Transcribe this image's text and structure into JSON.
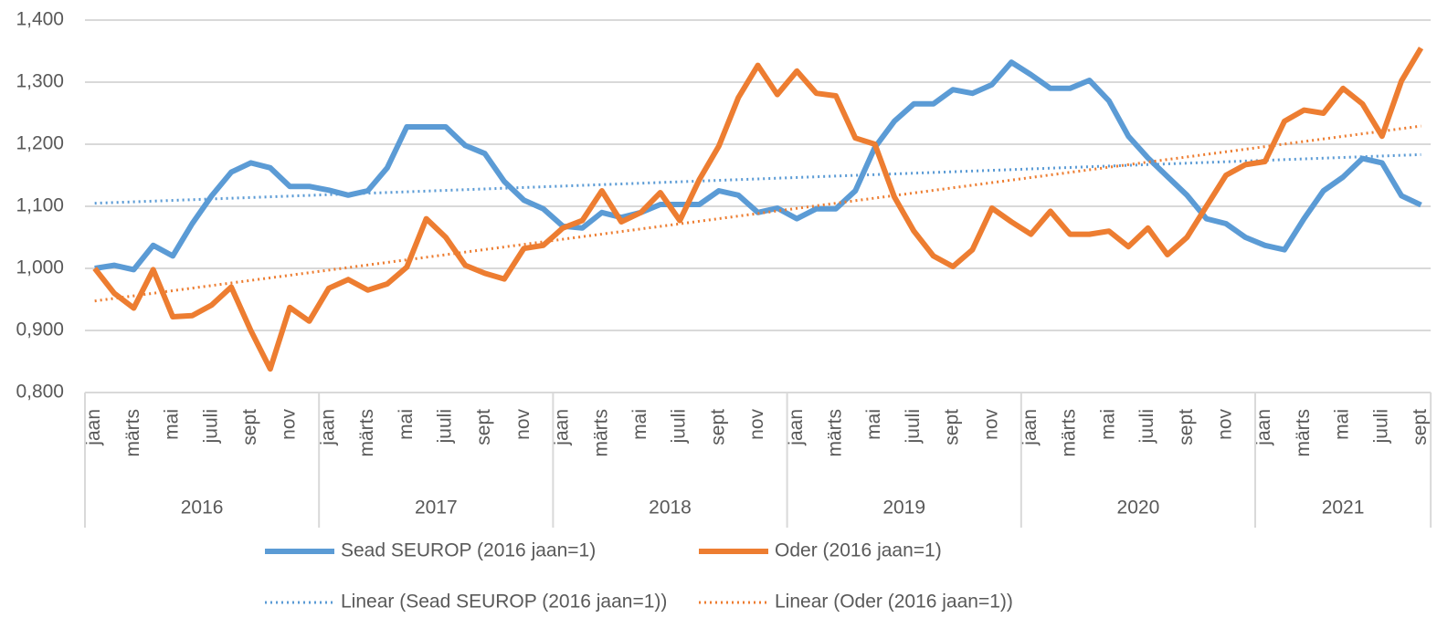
{
  "chart_data": {
    "type": "line",
    "categories": [
      "jaan",
      null,
      "märts",
      null,
      "mai",
      null,
      "juuli",
      null,
      "sept",
      null,
      "nov",
      null,
      "jaan",
      null,
      "märts",
      null,
      "mai",
      null,
      "juuli",
      null,
      "sept",
      null,
      "nov",
      null,
      "jaan",
      null,
      "märts",
      null,
      "mai",
      null,
      "juuli",
      null,
      "sept",
      null,
      "nov",
      null,
      "jaan",
      null,
      "märts",
      null,
      "mai",
      null,
      "juuli",
      null,
      "sept",
      null,
      "nov",
      null,
      "jaan",
      null,
      "märts",
      null,
      "mai",
      null,
      "juuli",
      null,
      "sept",
      null,
      "nov",
      null,
      "jaan",
      null,
      "märts",
      null,
      "mai",
      null,
      "juuli",
      null,
      "sept"
    ],
    "years": [
      "2016",
      "2017",
      "2018",
      "2019",
      "2020",
      "2021"
    ],
    "series": [
      {
        "name": "Sead SEUROP (2016 jaan=1)",
        "color": "#5b9bd5",
        "trendline": {
          "name": "Linear (Sead SEUROP (2016 jaan=1))"
        },
        "values": [
          1.0,
          1.005,
          0.998,
          1.037,
          1.02,
          1.072,
          1.117,
          1.155,
          1.17,
          1.162,
          1.132,
          1.132,
          1.126,
          1.118,
          1.125,
          1.162,
          1.228,
          1.228,
          1.228,
          1.198,
          1.185,
          1.14,
          1.11,
          1.096,
          1.068,
          1.065,
          1.09,
          1.082,
          1.09,
          1.103,
          1.103,
          1.103,
          1.125,
          1.118,
          1.09,
          1.097,
          1.08,
          1.096,
          1.096,
          1.125,
          1.195,
          1.237,
          1.265,
          1.265,
          1.288,
          1.282,
          1.296,
          1.332,
          1.312,
          1.29,
          1.29,
          1.303,
          1.27,
          1.213,
          1.178,
          1.148,
          1.118,
          1.08,
          1.072,
          1.05,
          1.037,
          1.03,
          1.08,
          1.125,
          1.147,
          1.177,
          1.17,
          1.117,
          1.102
        ]
      },
      {
        "name": "Oder (2016 jaan=1)",
        "color": "#ed7d31",
        "trendline": {
          "name": "Linear (Oder (2016 jaan=1))"
        },
        "values": [
          1.0,
          0.96,
          0.936,
          0.998,
          0.922,
          0.924,
          0.941,
          0.97,
          0.9,
          0.838,
          0.937,
          0.915,
          0.968,
          0.982,
          0.965,
          0.975,
          1.002,
          1.08,
          1.05,
          1.005,
          0.992,
          0.983,
          1.032,
          1.037,
          1.065,
          1.077,
          1.125,
          1.075,
          1.09,
          1.122,
          1.077,
          1.143,
          1.197,
          1.275,
          1.327,
          1.28,
          1.318,
          1.282,
          1.278,
          1.21,
          1.2,
          1.115,
          1.06,
          1.02,
          1.003,
          1.03,
          1.097,
          1.075,
          1.055,
          1.092,
          1.055,
          1.055,
          1.06,
          1.035,
          1.065,
          1.022,
          1.05,
          1.1,
          1.15,
          1.167,
          1.172,
          1.237,
          1.255,
          1.25,
          1.29,
          1.265,
          1.213,
          1.302,
          1.355
        ]
      }
    ],
    "ylim": [
      0.8,
      1.4
    ],
    "yticks": [
      {
        "value": 0.8,
        "label": "0,800"
      },
      {
        "value": 0.9,
        "label": "0,900"
      },
      {
        "value": 1.0,
        "label": "1,000"
      },
      {
        "value": 1.1,
        "label": "1,100"
      },
      {
        "value": 1.2,
        "label": "1,200"
      },
      {
        "value": 1.3,
        "label": "1,300"
      },
      {
        "value": 1.4,
        "label": "1,400"
      }
    ],
    "grid": true,
    "legend": "bottom"
  }
}
